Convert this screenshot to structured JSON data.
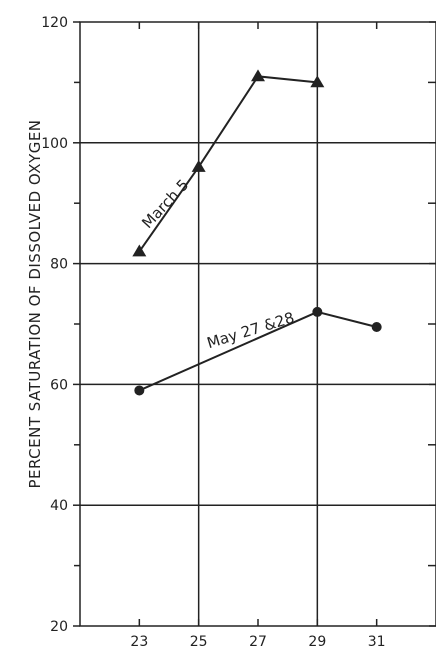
{
  "chart_data": {
    "type": "line",
    "title": "",
    "xlabel": "",
    "ylabel": "PERCENT SATURATION OF DISSOLVED OXYGEN",
    "xlim": [
      21,
      33
    ],
    "ylim": [
      20,
      120
    ],
    "x_ticks": [
      23,
      25,
      27,
      29,
      31
    ],
    "y_ticks": [
      20,
      40,
      60,
      80,
      100,
      120
    ],
    "y_minor_ticks": [
      30,
      50,
      70,
      90,
      110
    ],
    "grid": {
      "vertical": [
        25,
        29
      ],
      "horizontal": [
        40,
        60,
        80,
        100
      ]
    },
    "series": [
      {
        "name": "March 5",
        "marker": "triangle",
        "x": [
          23,
          25,
          27,
          29
        ],
        "y": [
          82,
          96,
          111,
          110
        ]
      },
      {
        "name": "May 27 & 28",
        "marker": "circle",
        "x": [
          23,
          29,
          31
        ],
        "y": [
          59,
          72,
          69.5
        ]
      }
    ],
    "series_labels": [
      "March 5",
      "May 27 &28"
    ]
  }
}
